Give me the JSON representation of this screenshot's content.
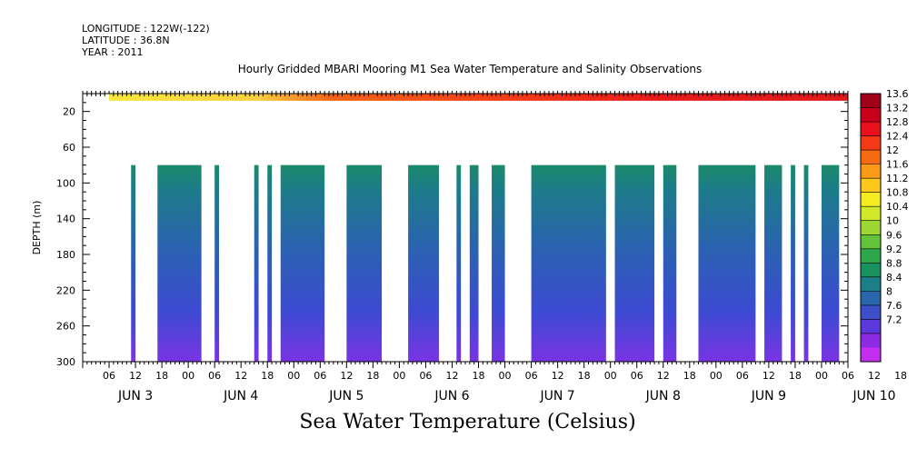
{
  "header": {
    "longitude": "LONGITUDE : 122W(-122)",
    "latitude": "LATITUDE : 36.8N",
    "year": "YEAR : 2011"
  },
  "chart_data": {
    "type": "heatmap",
    "title": "Hourly Gridded MBARI Mooring M1 Sea Water Temperature and Salinity Observations",
    "bottom_title": "Sea Water Temperature (Celsius)",
    "ylabel": "DEPTH (m)",
    "ylim": [
      300,
      0
    ],
    "y_ticks": [
      20,
      60,
      100,
      140,
      180,
      220,
      260,
      300
    ],
    "x_range_hours": [
      0,
      174
    ],
    "x_hour_ticks": [
      "06",
      "12",
      "18",
      "00",
      "06",
      "12",
      "18",
      "00",
      "06",
      "12",
      "18",
      "00",
      "06",
      "12",
      "18",
      "00",
      "06",
      "12",
      "18",
      "00",
      "06",
      "12",
      "18",
      "00",
      "06",
      "12",
      "18",
      "00",
      "06",
      "12",
      "18",
      "00"
    ],
    "x_day_labels": [
      "JUN  3",
      "JUN  4",
      "JUN  5",
      "JUN  6",
      "JUN  7",
      "JUN  8",
      "JUN  9",
      "JUN 10"
    ],
    "colorbar_levels": [
      "13.6",
      "13.2",
      "12.8",
      "12.4",
      "12",
      "11.6",
      "11.2",
      "10.8",
      "10.4",
      "10",
      "9.6",
      "9.2",
      "8.8",
      "8.4",
      "8",
      "7.6",
      "7.2"
    ],
    "colorbar_colors": [
      "#a00018",
      "#c8001c",
      "#e8101a",
      "#f43a16",
      "#f86a12",
      "#fa9a16",
      "#fcc81c",
      "#f4ec20",
      "#d2e82a",
      "#9ed632",
      "#62c23a",
      "#2ea64a",
      "#18925e",
      "#1c7e86",
      "#2a66aa",
      "#3c4ec8",
      "#5a38dc",
      "#8c2ae4",
      "#c42ef0"
    ],
    "surface_layer": {
      "depth_range": [
        0,
        8
      ],
      "start_hour": 6,
      "temperature_range": [
        11.2,
        13.4
      ]
    },
    "deep_layer": {
      "depth_range": [
        80,
        300
      ],
      "temperature_top": 9.0,
      "temperature_bottom": 7.3,
      "data_segments_hours": [
        [
          11,
          12
        ],
        [
          17,
          27
        ],
        [
          30,
          31
        ],
        [
          39,
          40
        ],
        [
          42,
          43
        ],
        [
          45,
          55
        ],
        [
          60,
          68
        ],
        [
          74,
          81
        ],
        [
          85,
          86
        ],
        [
          88,
          90
        ],
        [
          93,
          96
        ],
        [
          102,
          119
        ],
        [
          121,
          130
        ],
        [
          132,
          135
        ],
        [
          140,
          153
        ],
        [
          155,
          159
        ],
        [
          161,
          162
        ],
        [
          164,
          165
        ],
        [
          168,
          172
        ]
      ]
    }
  }
}
